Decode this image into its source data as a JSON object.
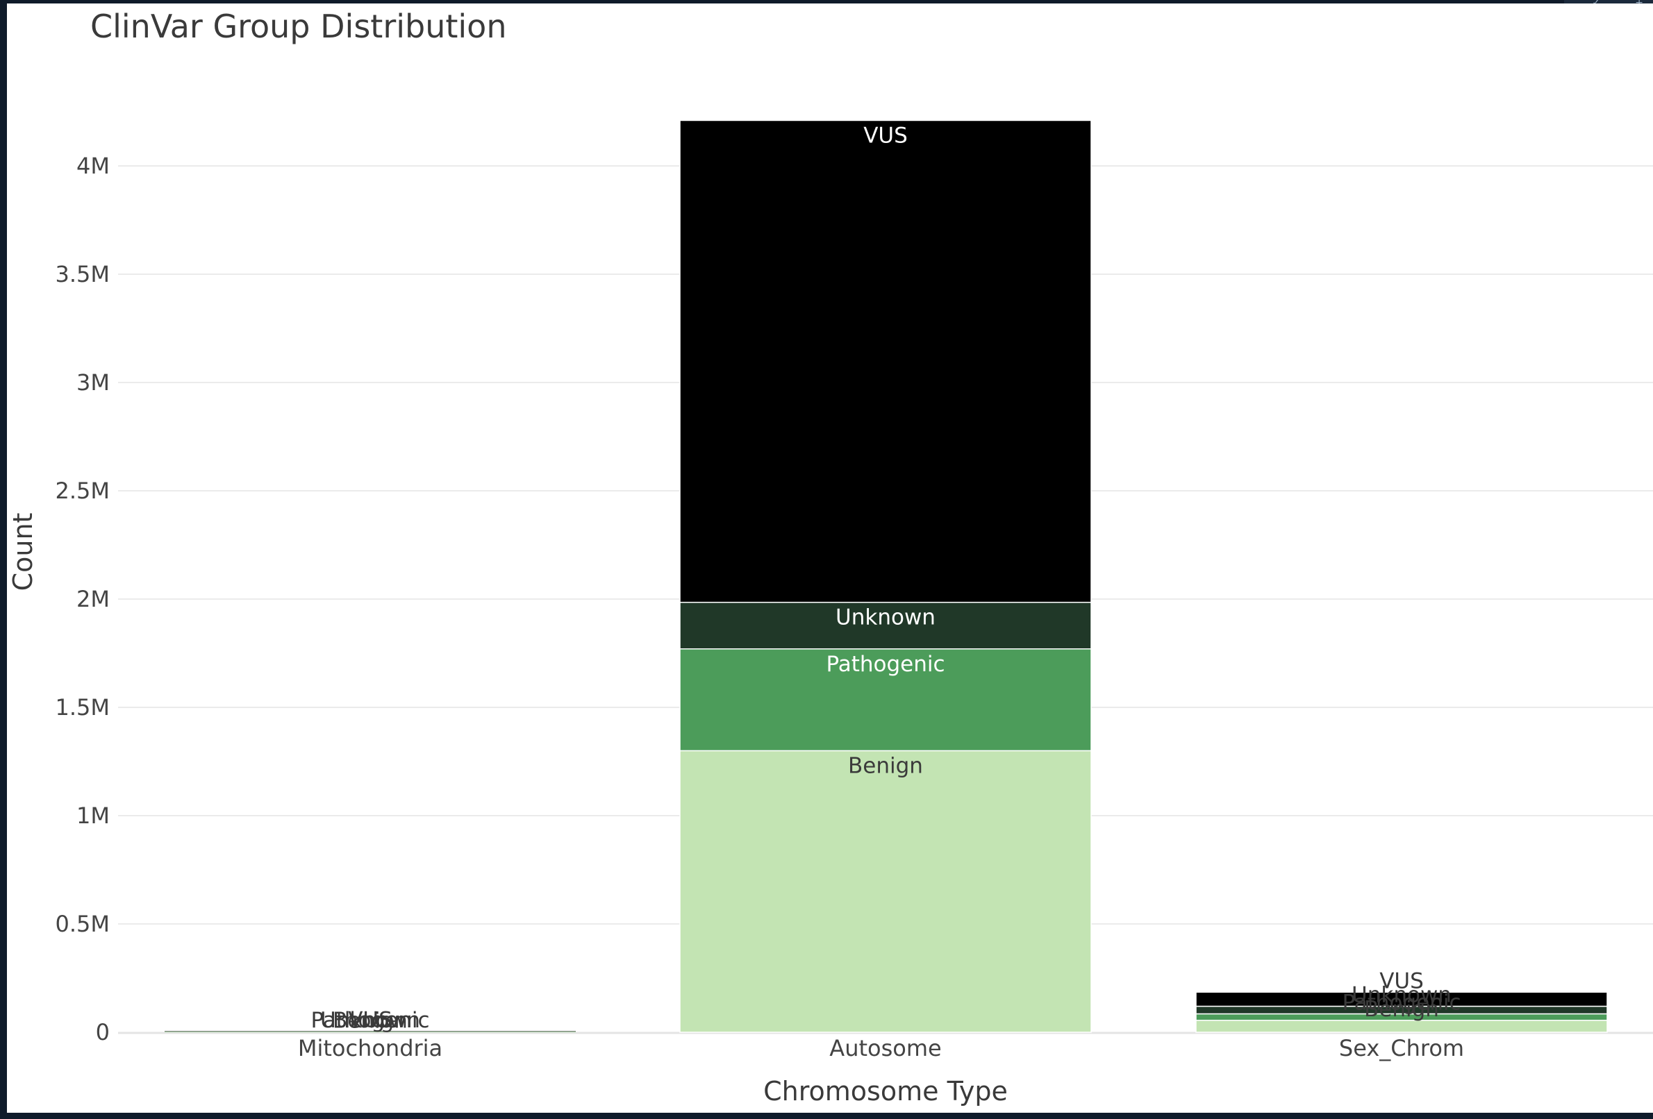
{
  "chart_data": {
    "type": "bar",
    "stacked": true,
    "title": "ClinVar Group Distribution",
    "xlabel": "Chromosome Type",
    "ylabel": "Count",
    "categories": [
      "Mitochondria",
      "Autosome",
      "Sex_Chrom"
    ],
    "ylim": [
      0,
      4200000
    ],
    "yticks": [
      0,
      500000,
      1000000,
      1500000,
      2000000,
      2500000,
      3000000,
      3500000,
      4000000
    ],
    "ytick_labels": [
      "0",
      "0.5M",
      "1M",
      "1.5M",
      "2M",
      "2.5M",
      "3M",
      "3.5M",
      "4M"
    ],
    "grid": true,
    "legend": "none",
    "series": [
      {
        "name": "Benign",
        "color": "#c3e4b3",
        "label_color": "#3a3a3a",
        "values": [
          2000,
          1300000,
          55000
        ]
      },
      {
        "name": "Pathogenic",
        "color": "#4c9c5a",
        "label_color": "#ffffff",
        "values": [
          1000,
          470000,
          30000
        ]
      },
      {
        "name": "Unknown",
        "color": "#203828",
        "label_color": "#ffffff",
        "values": [
          500,
          215000,
          35000
        ]
      },
      {
        "name": "VUS",
        "color": "#000000",
        "label_color": "#ffffff",
        "values": [
          1500,
          2225000,
          65000
        ]
      }
    ]
  }
}
